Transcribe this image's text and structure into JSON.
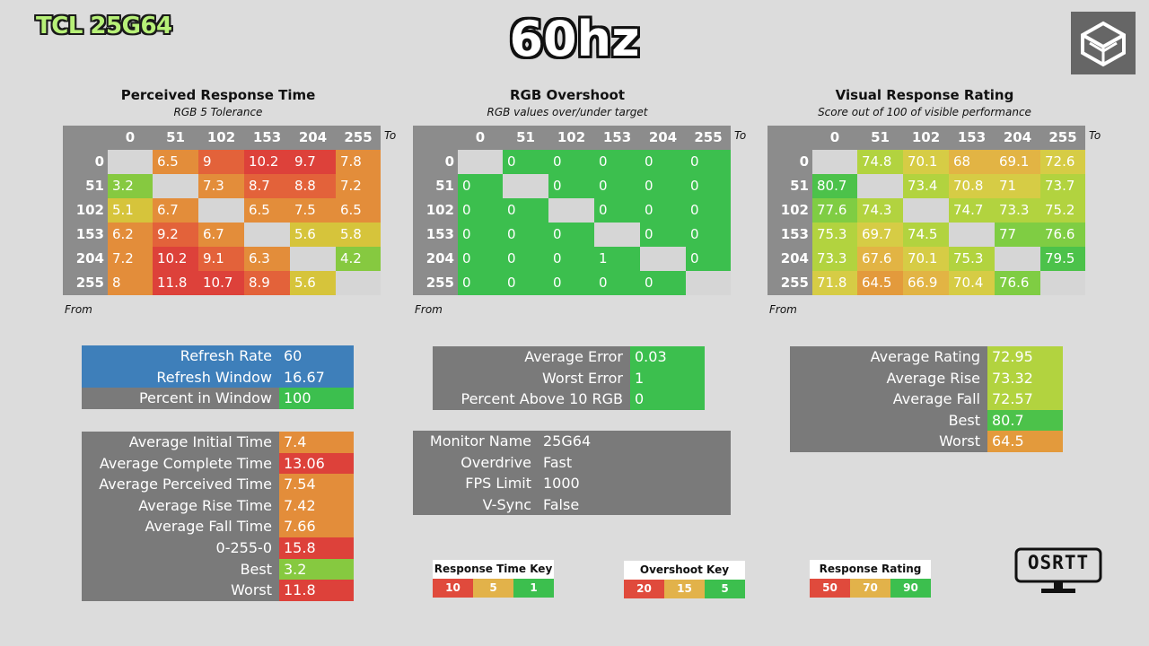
{
  "header": {
    "monitor": "TCL 25G64",
    "refresh_title": "60hz"
  },
  "colors": {
    "red": "#e04a3c",
    "orange": "#e68f3a",
    "yellow": "#e2d24a",
    "green": "#3cbf4e",
    "lightgreen": "#7fcd43",
    "blue": "#3e7fba",
    "gray": "#7a7a7a"
  },
  "matrices": {
    "prt": {
      "title": "Perceived Response Time",
      "subtitle": "RGB 5 Tolerance",
      "to_label": "To",
      "from_label": "From",
      "headers": [
        "0",
        "51",
        "102",
        "153",
        "204",
        "255"
      ],
      "rows": [
        [
          "",
          "6.5",
          "9",
          "10.2",
          "9.7",
          "7.8"
        ],
        [
          "3.2",
          "",
          "7.3",
          "8.7",
          "8.8",
          "7.2"
        ],
        [
          "5.1",
          "6.7",
          "",
          "6.5",
          "7.5",
          "6.5"
        ],
        [
          "6.2",
          "9.2",
          "6.7",
          "",
          "5.6",
          "5.8"
        ],
        [
          "7.2",
          "10.2",
          "9.1",
          "6.3",
          "",
          "4.2"
        ],
        [
          "8",
          "11.8",
          "10.7",
          "8.9",
          "5.6",
          ""
        ]
      ]
    },
    "ovs": {
      "title": "RGB Overshoot",
      "subtitle": "RGB values over/under target",
      "to_label": "To",
      "from_label": "From",
      "headers": [
        "0",
        "51",
        "102",
        "153",
        "204",
        "255"
      ],
      "rows": [
        [
          "",
          "0",
          "0",
          "0",
          "0",
          "0"
        ],
        [
          "0",
          "",
          "0",
          "0",
          "0",
          "0"
        ],
        [
          "0",
          "0",
          "",
          "0",
          "0",
          "0"
        ],
        [
          "0",
          "0",
          "0",
          "",
          "0",
          "0"
        ],
        [
          "0",
          "0",
          "0",
          "1",
          "",
          "0"
        ],
        [
          "0",
          "0",
          "0",
          "0",
          "0",
          ""
        ]
      ]
    },
    "vrr": {
      "title": "Visual Response Rating",
      "subtitle": "Score out of 100 of visible performance",
      "to_label": "To",
      "from_label": "From",
      "headers": [
        "0",
        "51",
        "102",
        "153",
        "204",
        "255"
      ],
      "rows": [
        [
          "",
          "74.8",
          "70.1",
          "68",
          "69.1",
          "72.6"
        ],
        [
          "80.7",
          "",
          "73.4",
          "70.8",
          "71",
          "73.7"
        ],
        [
          "77.6",
          "74.3",
          "",
          "74.7",
          "73.3",
          "75.2"
        ],
        [
          "75.3",
          "69.7",
          "74.5",
          "",
          "77",
          "76.6"
        ],
        [
          "73.3",
          "67.6",
          "70.1",
          "75.3",
          "",
          "79.5"
        ],
        [
          "71.8",
          "64.5",
          "66.9",
          "70.4",
          "76.6",
          ""
        ]
      ]
    }
  },
  "refresh_table": [
    {
      "label": "Refresh Rate",
      "value": "60"
    },
    {
      "label": "Refresh Window",
      "value": "16.67"
    },
    {
      "label": "Percent in Window",
      "value": "100"
    }
  ],
  "time_table": [
    {
      "label": "Average Initial Time",
      "value": "7.4"
    },
    {
      "label": "Average Complete Time",
      "value": "13.06"
    },
    {
      "label": "Average Perceived Time",
      "value": "7.54"
    },
    {
      "label": "Average Rise Time",
      "value": "7.42"
    },
    {
      "label": "Average Fall Time",
      "value": "7.66"
    },
    {
      "label": "0-255-0",
      "value": "15.8"
    },
    {
      "label": "Best",
      "value": "3.2"
    },
    {
      "label": "Worst",
      "value": "11.8"
    }
  ],
  "error_table": [
    {
      "label": "Average Error",
      "value": "0.03"
    },
    {
      "label": "Worst Error",
      "value": "1"
    },
    {
      "label": "Percent Above 10 RGB",
      "value": "0"
    }
  ],
  "monitor_table": [
    {
      "label": "Monitor Name",
      "value": "25G64"
    },
    {
      "label": "Overdrive",
      "value": "Fast"
    },
    {
      "label": "FPS Limit",
      "value": "1000"
    },
    {
      "label": "V-Sync",
      "value": "False"
    }
  ],
  "rating_table": [
    {
      "label": "Average Rating",
      "value": "72.95"
    },
    {
      "label": "Average Rise",
      "value": "73.32"
    },
    {
      "label": "Average Fall",
      "value": "72.57"
    },
    {
      "label": "Best",
      "value": "80.7"
    },
    {
      "label": "Worst",
      "value": "64.5"
    }
  ],
  "keys": {
    "response_time": {
      "title": "Response Time Key",
      "values": [
        "10",
        "5",
        "1"
      ]
    },
    "overshoot": {
      "title": "Overshoot Key",
      "values": [
        "20",
        "15",
        "5"
      ]
    },
    "rating": {
      "title": "Response Rating Key",
      "values": [
        "50",
        "70",
        "90"
      ]
    }
  },
  "footer_logo": "OSRTT"
}
